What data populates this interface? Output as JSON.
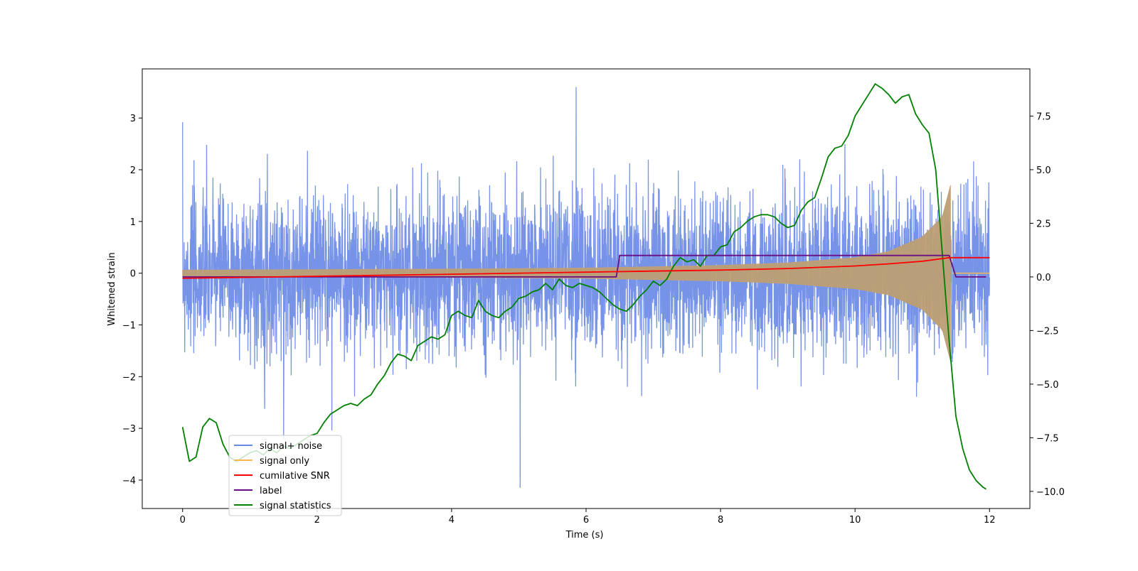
{
  "chart_data": {
    "type": "line",
    "xlabel": "Time (s)",
    "ylabel": "Whitened strain",
    "xlim": [
      -0.6,
      12.6
    ],
    "ylim": [
      -4.55,
      3.95
    ],
    "y2lim": [
      -10.8,
      9.7
    ],
    "xticks": [
      "0",
      "2",
      "4",
      "6",
      "8",
      "10",
      "12"
    ],
    "xtick_values": [
      0,
      2,
      4,
      6,
      8,
      10,
      12
    ],
    "yticks": [
      "−4",
      "−3",
      "−2",
      "−1",
      "0",
      "1",
      "2",
      "3"
    ],
    "ytick_values": [
      -4,
      -3,
      -2,
      -1,
      0,
      1,
      2,
      3
    ],
    "y2ticks": [
      "−10.0",
      "−7.5",
      "−5.0",
      "−2.5",
      "0.0",
      "2.5",
      "5.0",
      "7.5"
    ],
    "y2tick_values": [
      -10,
      -7.5,
      -5,
      -2.5,
      0,
      2.5,
      5,
      7.5
    ],
    "legend_position": "lower-left",
    "series": [
      {
        "name": "signal+ noise",
        "axis": "left",
        "color": "#6b8ae6",
        "kind": "noise",
        "x_range": [
          0,
          12
        ],
        "typical_amplitude": [
          -1.9,
          1.9
        ],
        "extremes": {
          "max": 3.6,
          "min": -4.15
        }
      },
      {
        "name": "signal only",
        "axis": "left",
        "color": "#f5b750",
        "kind": "chirp",
        "x_range": [
          0,
          11.45
        ],
        "envelope_points": [
          [
            0,
            0.06
          ],
          [
            2,
            0.07
          ],
          [
            4,
            0.08
          ],
          [
            6,
            0.1
          ],
          [
            8,
            0.15
          ],
          [
            9,
            0.2
          ],
          [
            10,
            0.3
          ],
          [
            10.5,
            0.42
          ],
          [
            11,
            0.7
          ],
          [
            11.3,
            1.1
          ],
          [
            11.42,
            1.7
          ],
          [
            11.45,
            0
          ]
        ]
      },
      {
        "name": "cumilative SNR",
        "axis": "left",
        "color": "#ff0000",
        "x": [
          0,
          2,
          4,
          6,
          7,
          8,
          9,
          10,
          10.5,
          11,
          11.4,
          12
        ],
        "y": [
          -0.1,
          -0.06,
          -0.02,
          0.02,
          0.04,
          0.06,
          0.09,
          0.14,
          0.18,
          0.23,
          0.3,
          0.3
        ]
      },
      {
        "name": "label",
        "axis": "right",
        "color": "#6a0d83",
        "x": [
          0,
          6.45,
          6.5,
          11.4,
          11.5,
          11.95
        ],
        "y": [
          0,
          0,
          1,
          1,
          0,
          0
        ]
      },
      {
        "name": "signal statistics",
        "axis": "right",
        "color": "#008000",
        "x": [
          0,
          0.1,
          0.2,
          0.3,
          0.4,
          0.5,
          0.6,
          0.7,
          0.8,
          0.9,
          1.0,
          1.1,
          1.2,
          1.3,
          1.4,
          1.5,
          1.6,
          1.7,
          1.8,
          1.9,
          2.0,
          2.1,
          2.2,
          2.3,
          2.4,
          2.5,
          2.6,
          2.7,
          2.8,
          2.9,
          3.0,
          3.1,
          3.2,
          3.3,
          3.4,
          3.5,
          3.6,
          3.7,
          3.8,
          3.9,
          4.0,
          4.1,
          4.2,
          4.3,
          4.4,
          4.5,
          4.6,
          4.7,
          4.8,
          4.9,
          5.0,
          5.1,
          5.2,
          5.3,
          5.4,
          5.5,
          5.6,
          5.7,
          5.8,
          5.9,
          6.0,
          6.1,
          6.2,
          6.3,
          6.4,
          6.5,
          6.6,
          6.7,
          6.8,
          6.9,
          7.0,
          7.1,
          7.2,
          7.3,
          7.4,
          7.5,
          7.6,
          7.7,
          7.8,
          7.9,
          8.0,
          8.1,
          8.2,
          8.3,
          8.4,
          8.5,
          8.6,
          8.7,
          8.8,
          8.9,
          9.0,
          9.1,
          9.2,
          9.3,
          9.4,
          9.5,
          9.6,
          9.7,
          9.8,
          9.9,
          10.0,
          10.1,
          10.2,
          10.3,
          10.4,
          10.5,
          10.6,
          10.7,
          10.8,
          10.9,
          11.0,
          11.1,
          11.2,
          11.3,
          11.4,
          11.5,
          11.6,
          11.7,
          11.8,
          11.9,
          11.95
        ],
        "y": [
          -7.0,
          -8.6,
          -8.4,
          -7.0,
          -6.6,
          -6.8,
          -7.8,
          -8.4,
          -8.6,
          -8.4,
          -8.2,
          -8.1,
          -8.3,
          -8.0,
          -8.2,
          -7.9,
          -8.0,
          -7.8,
          -7.6,
          -7.4,
          -7.3,
          -6.8,
          -6.4,
          -6.2,
          -6.0,
          -5.9,
          -6.0,
          -5.7,
          -5.5,
          -5.0,
          -4.6,
          -4.0,
          -3.6,
          -3.7,
          -3.9,
          -3.2,
          -3.0,
          -2.8,
          -2.9,
          -2.7,
          -1.8,
          -1.6,
          -1.8,
          -1.9,
          -1.1,
          -1.6,
          -1.8,
          -1.9,
          -1.6,
          -1.4,
          -1.0,
          -0.9,
          -0.7,
          -0.6,
          -0.3,
          -0.6,
          -0.1,
          -0.4,
          -0.5,
          -0.3,
          -0.4,
          -0.5,
          -0.7,
          -1.0,
          -1.3,
          -1.5,
          -1.6,
          -1.3,
          -0.9,
          -0.6,
          -0.2,
          -0.4,
          -0.1,
          0.5,
          0.9,
          0.7,
          0.8,
          0.5,
          1.0,
          1.0,
          1.4,
          1.5,
          2.1,
          2.3,
          2.6,
          2.8,
          2.9,
          2.9,
          2.8,
          2.5,
          2.3,
          2.4,
          3.1,
          3.5,
          3.7,
          4.6,
          5.6,
          6.0,
          6.1,
          6.6,
          7.5,
          8.0,
          8.5,
          9.0,
          8.8,
          8.5,
          8.1,
          8.4,
          8.5,
          7.6,
          7.1,
          6.7,
          5.0,
          1.0,
          -3.0,
          -6.5,
          -8.0,
          -9.0,
          -9.5,
          -9.8,
          -9.9
        ]
      }
    ]
  }
}
